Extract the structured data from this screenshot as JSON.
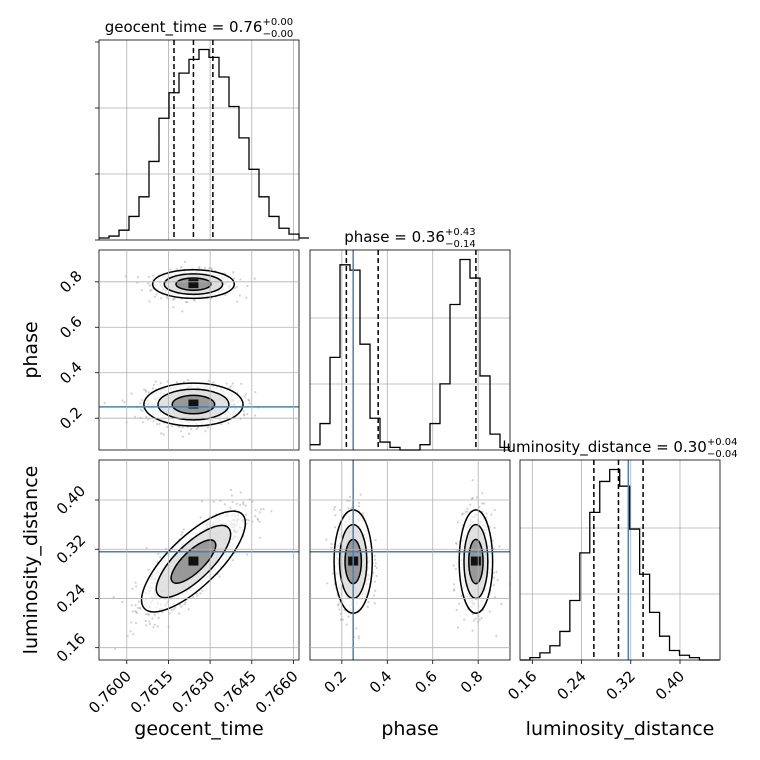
{
  "chart_data": {
    "type": "corner",
    "parameters": [
      {
        "name": "geocent_time",
        "range": [
          0.759,
          0.7662
        ],
        "ticks": [
          0.76,
          0.7615,
          0.763,
          0.7645,
          0.766
        ],
        "tick_labels": [
          "0.7600",
          "0.7615",
          "0.7630",
          "0.7645",
          "0.7660"
        ],
        "injection": null,
        "quantiles": [
          0.7617,
          0.7624,
          0.7631
        ],
        "title_main": "geocent_time = 0.76",
        "title_sup": "+0.00",
        "title_sub": "−0.00",
        "hist": {
          "start": 0.759,
          "width": 0.00036,
          "counts": [
            1,
            2,
            5,
            12,
            22,
            40,
            62,
            75,
            85,
            92,
            97,
            93,
            83,
            68,
            52,
            36,
            22,
            12,
            6,
            3,
            1
          ]
        }
      },
      {
        "name": "phase",
        "range": [
          0.06,
          0.94
        ],
        "ticks": [
          0.2,
          0.4,
          0.6,
          0.8
        ],
        "tick_labels": [
          "0.2",
          "0.4",
          "0.6",
          "0.8"
        ],
        "injection": 0.25,
        "quantiles": [
          0.22,
          0.36,
          0.79
        ],
        "title_main": "phase = 0.36",
        "title_sup": "+0.43",
        "title_sub": "−0.14",
        "hist": {
          "start": 0.06,
          "width": 0.044,
          "counts": [
            2,
            10,
            35,
            70,
            68,
            40,
            12,
            3,
            1,
            0,
            0,
            2,
            10,
            25,
            55,
            72,
            65,
            28,
            6,
            1
          ]
        }
      },
      {
        "name": "luminosity_distance",
        "range": [
          0.14,
          0.465
        ],
        "ticks": [
          0.16,
          0.24,
          0.32,
          0.4
        ],
        "tick_labels": [
          "0.16",
          "0.24",
          "0.32",
          "0.40"
        ],
        "injection": 0.316,
        "quantiles": [
          0.26,
          0.3,
          0.34
        ],
        "title_main": "luminosity_distance = 0.30",
        "title_sup": "+0.04",
        "title_sub": "−0.04",
        "hist": {
          "start": 0.14,
          "width": 0.0162,
          "counts": [
            0,
            1,
            3,
            6,
            12,
            25,
            45,
            62,
            75,
            80,
            73,
            55,
            36,
            20,
            10,
            4,
            2,
            1,
            0,
            0
          ]
        }
      }
    ],
    "joint": [
      {
        "x": 0,
        "y": 1,
        "clusters": [
          {
            "cx": 0.7624,
            "cy": 0.79,
            "sx": 0.0007,
            "sy": 0.03,
            "rho": 0.0,
            "n": 550
          },
          {
            "cx": 0.7624,
            "cy": 0.26,
            "sx": 0.00085,
            "sy": 0.045,
            "rho": 0.0,
            "n": 650
          }
        ]
      },
      {
        "x": 0,
        "y": 2,
        "clusters": [
          {
            "cx": 0.7624,
            "cy": 0.3,
            "sx": 0.00085,
            "sy": 0.04,
            "rho": 0.8,
            "n": 1100
          }
        ]
      },
      {
        "x": 1,
        "y": 2,
        "clusters": [
          {
            "cx": 0.25,
            "cy": 0.3,
            "sx": 0.04,
            "sy": 0.04,
            "rho": 0.0,
            "n": 550
          },
          {
            "cx": 0.79,
            "cy": 0.3,
            "sx": 0.035,
            "sy": 0.04,
            "rho": 0.0,
            "n": 550
          }
        ]
      }
    ],
    "colors": {
      "injection": "#4682b4",
      "hist": "#000000",
      "grid": "#b0b0b0",
      "points": "#9a9a9a"
    },
    "grid": true
  }
}
